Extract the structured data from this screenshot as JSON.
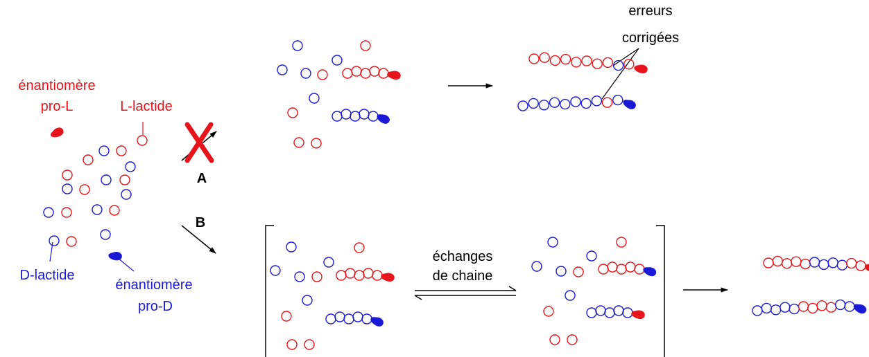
{
  "colors": {
    "red": "#e8141c",
    "blue": "#1a1ad6",
    "black": "#000000"
  },
  "labels": {
    "red_catalyst_line1": "énantiomère",
    "red_catalyst_line2": "pro-L",
    "l_lactide": "L-lactide",
    "d_lactide": "D-lactide",
    "blue_catalyst_line1": "énantiomère",
    "blue_catalyst_line2": "pro-D",
    "path_a": "A",
    "path_b": "B",
    "errors_line1": "erreurs",
    "errors_line2": "corrigées",
    "exchange_line1": "échanges",
    "exchange_line2": "de chaine"
  },
  "icons": [
    "catalyst-drop-icon",
    "cross-mark-icon",
    "equilibrium-arrows-icon",
    "reaction-arrow-icon"
  ]
}
